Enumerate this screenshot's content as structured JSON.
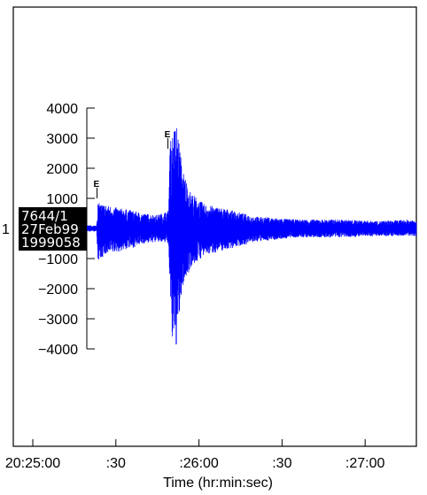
{
  "chart_data": {
    "type": "line",
    "xlabel": "Time (hr:min:sec)",
    "ylabel": "",
    "ylim": [
      -4000,
      4000
    ],
    "yticks": [
      4000,
      3000,
      2000,
      1000,
      -1000,
      -2000,
      -3000,
      -4000
    ],
    "xticks": [
      {
        "label": "20:25:00",
        "t": 0
      },
      {
        "label": ":30",
        "t": 30
      },
      {
        "label": ":26:00",
        "t": 60
      },
      {
        "label": ":30",
        "t": 90
      },
      {
        "label": ":27:00",
        "t": 120
      }
    ],
    "xlim": [
      0,
      138.5
    ],
    "trace_number": "1",
    "station_info": [
      "7644/1",
      "27Feb99",
      "1999058"
    ],
    "series": [
      {
        "color": "#0000ff",
        "envelope": [
          {
            "t": 0,
            "max": 100,
            "min": -100
          },
          {
            "t": 23,
            "max": 100,
            "min": -100
          },
          {
            "t": 23.5,
            "max": 850,
            "min": -1100
          },
          {
            "t": 26,
            "max": 800,
            "min": -900
          },
          {
            "t": 30,
            "max": 700,
            "min": -800
          },
          {
            "t": 36,
            "max": 600,
            "min": -650
          },
          {
            "t": 40,
            "max": 500,
            "min": -500
          },
          {
            "t": 45,
            "max": 450,
            "min": -450
          },
          {
            "t": 49,
            "max": 600,
            "min": -500
          },
          {
            "t": 49.5,
            "max": 2800,
            "min": -2200
          },
          {
            "t": 50.5,
            "max": 3200,
            "min": -4000
          },
          {
            "t": 52,
            "max": 3550,
            "min": -3900
          },
          {
            "t": 54,
            "max": 2000,
            "min": -2000
          },
          {
            "t": 57,
            "max": 1200,
            "min": -1300
          },
          {
            "t": 62,
            "max": 800,
            "min": -900
          },
          {
            "t": 70,
            "max": 650,
            "min": -700
          },
          {
            "t": 80,
            "max": 400,
            "min": -450
          },
          {
            "t": 95,
            "max": 300,
            "min": -300
          },
          {
            "t": 110,
            "max": 300,
            "min": -300
          },
          {
            "t": 125,
            "max": 250,
            "min": -250
          },
          {
            "t": 138.5,
            "max": 300,
            "min": -250
          }
        ]
      }
    ],
    "picks": [
      {
        "label": "E",
        "t": 23.2,
        "value": 1000
      },
      {
        "label": "E",
        "t": 48.8,
        "value": 2650
      }
    ]
  }
}
